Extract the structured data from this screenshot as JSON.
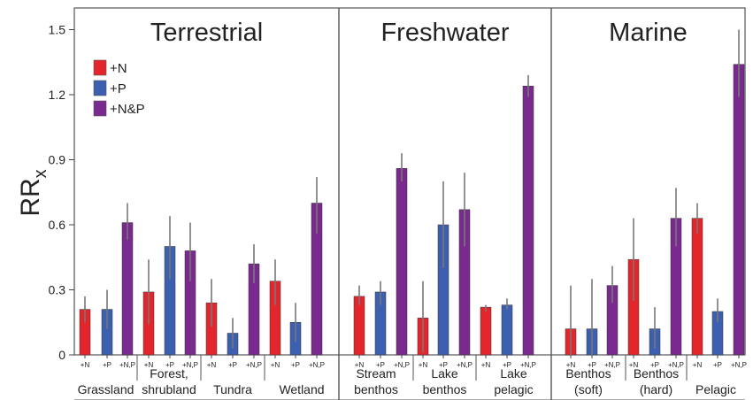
{
  "chart_data": {
    "type": "bar",
    "ylabel": "RR",
    "ylabel_sub": "x",
    "ylim": [
      0,
      1.6
    ],
    "yticks": [
      "0",
      "0.3",
      "0.6",
      "0.9",
      "1.2",
      "1.5"
    ],
    "ytick_values": [
      0,
      0.3,
      0.6,
      0.9,
      1.2,
      1.5
    ],
    "legend": {
      "placement": "top-left",
      "entries": [
        {
          "label": "+N",
          "color": "#e3262b"
        },
        {
          "label": "+P",
          "color": "#3d5fb0"
        },
        {
          "label": "+N&P",
          "color": "#7a2a8e"
        }
      ]
    },
    "panels": [
      {
        "title": "Terrestrial",
        "groups": [
          {
            "label_lines": [
              "Grassland"
            ],
            "ticks": [
              "+N",
              "+P",
              "+N,P"
            ],
            "values": [
              0.21,
              0.21,
              0.61
            ],
            "err_low": [
              0.15,
              0.12,
              0.53
            ],
            "err_high": [
              0.27,
              0.3,
              0.7
            ]
          },
          {
            "label_lines": [
              "Forest,",
              "shrubland"
            ],
            "ticks": [
              "+N",
              "+P",
              "+N,P"
            ],
            "values": [
              0.29,
              0.5,
              0.48
            ],
            "err_low": [
              0.14,
              0.35,
              0.34
            ],
            "err_high": [
              0.44,
              0.64,
              0.61
            ]
          },
          {
            "label_lines": [
              "Tundra"
            ],
            "ticks": [
              "+N",
              "+P",
              "+N,P"
            ],
            "values": [
              0.24,
              0.1,
              0.42
            ],
            "err_low": [
              0.13,
              0.03,
              0.33
            ],
            "err_high": [
              0.35,
              0.17,
              0.51
            ]
          },
          {
            "label_lines": [
              "Wetland"
            ],
            "ticks": [
              "+N",
              "+P",
              "+N,P"
            ],
            "values": [
              0.34,
              0.15,
              0.7
            ],
            "err_low": [
              0.23,
              0.06,
              0.56
            ],
            "err_high": [
              0.44,
              0.24,
              0.82
            ]
          }
        ]
      },
      {
        "title": "Freshwater",
        "groups": [
          {
            "label_lines": [
              "Stream",
              "benthos"
            ],
            "ticks": [
              "+N",
              "+P",
              "+N,P"
            ],
            "values": [
              0.27,
              0.29,
              0.86
            ],
            "err_low": [
              0.23,
              0.23,
              0.8
            ],
            "err_high": [
              0.32,
              0.34,
              0.93
            ]
          },
          {
            "label_lines": [
              "Lake",
              "benthos"
            ],
            "ticks": [
              "+N",
              "+P",
              "+N,P"
            ],
            "values": [
              0.17,
              0.6,
              0.67
            ],
            "err_low": [
              0.01,
              0.4,
              0.5
            ],
            "err_high": [
              0.34,
              0.8,
              0.84
            ]
          },
          {
            "label_lines": [
              "Lake",
              "pelagic"
            ],
            "ticks": [
              "+N",
              "+P",
              "+N,P"
            ],
            "values": [
              0.22,
              0.23,
              1.24
            ],
            "err_low": [
              0.2,
              0.21,
              1.19
            ],
            "err_high": [
              0.23,
              0.26,
              1.29
            ]
          }
        ]
      },
      {
        "title": "Marine",
        "groups": [
          {
            "label_lines": [
              "Benthos",
              "(soft)"
            ],
            "ticks": [
              "+N",
              "+P",
              "+N,P"
            ],
            "values": [
              0.12,
              0.12,
              0.32
            ],
            "err_low": [
              0.0,
              0.0,
              0.24
            ],
            "err_high": [
              0.32,
              0.35,
              0.41
            ]
          },
          {
            "label_lines": [
              "Benthos",
              "(hard)"
            ],
            "ticks": [
              "+N",
              "+P",
              "+N,P"
            ],
            "values": [
              0.44,
              0.12,
              0.63
            ],
            "err_low": [
              0.25,
              0.03,
              0.5
            ],
            "err_high": [
              0.63,
              0.22,
              0.77
            ]
          },
          {
            "label_lines": [
              "Pelagic"
            ],
            "ticks": [
              "+N",
              "+P",
              "+N,P"
            ],
            "values": [
              0.63,
              0.2,
              1.34
            ],
            "err_low": [
              0.56,
              0.15,
              1.19
            ],
            "err_high": [
              0.7,
              0.26,
              1.5
            ]
          }
        ]
      }
    ]
  }
}
